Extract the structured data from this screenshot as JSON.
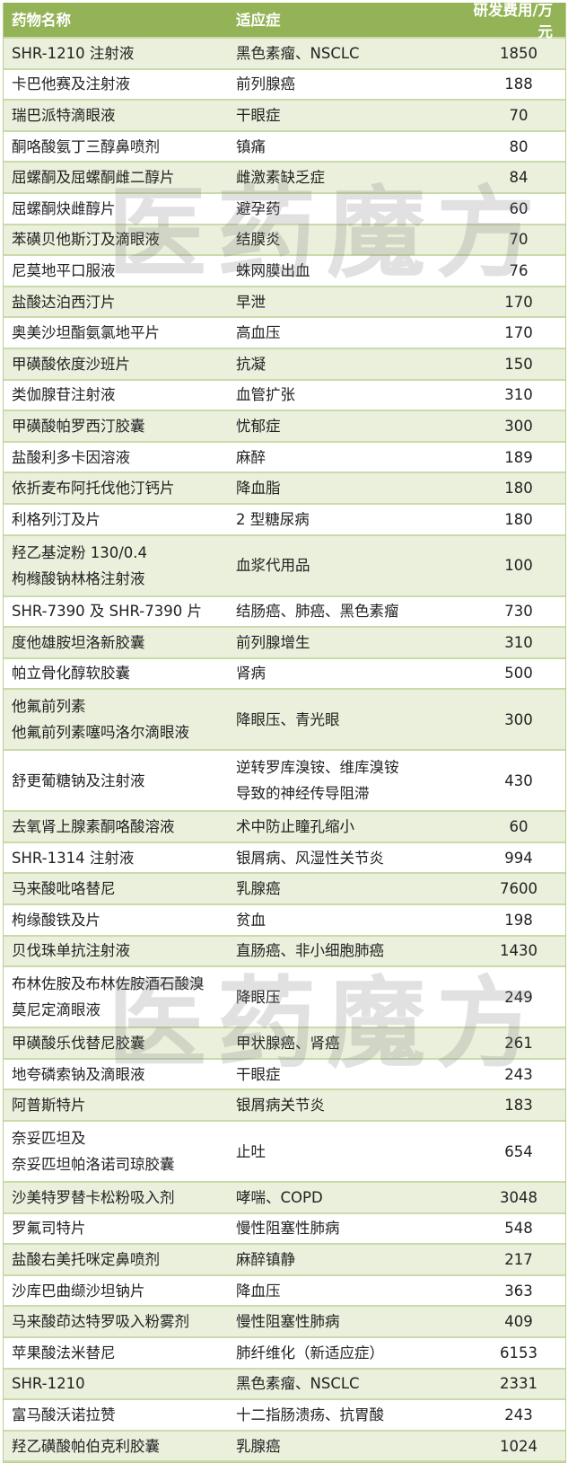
{
  "header": {
    "name": "药物名称",
    "indication": "适应症",
    "cost": "研发费用/万元"
  },
  "watermark": "医药魔方",
  "colors": {
    "header_bg": "#93b356",
    "row_alt_bg": "#eaf0dc",
    "row_bg": "#ffffff"
  },
  "rows": [
    {
      "name": [
        "SHR-1210 注射液"
      ],
      "indication": [
        "黑色素瘤、NSCLC"
      ],
      "cost": "1850"
    },
    {
      "name": [
        "卡巴他赛及注射液"
      ],
      "indication": [
        "前列腺癌"
      ],
      "cost": "188"
    },
    {
      "name": [
        "瑞巴派特滴眼液"
      ],
      "indication": [
        "干眼症"
      ],
      "cost": "70"
    },
    {
      "name": [
        "酮咯酸氨丁三醇鼻喷剂"
      ],
      "indication": [
        "镇痛"
      ],
      "cost": "80"
    },
    {
      "name": [
        "屈螺酮及屈螺酮雌二醇片"
      ],
      "indication": [
        "雌激素缺乏症"
      ],
      "cost": "84"
    },
    {
      "name": [
        "屈螺酮炔雌醇片"
      ],
      "indication": [
        "避孕药"
      ],
      "cost": "60"
    },
    {
      "name": [
        "苯磺贝他斯汀及滴眼液"
      ],
      "indication": [
        "结膜炎"
      ],
      "cost": "70"
    },
    {
      "name": [
        "尼莫地平口服液"
      ],
      "indication": [
        "蛛网膜出血"
      ],
      "cost": "76"
    },
    {
      "name": [
        "盐酸达泊西汀片"
      ],
      "indication": [
        "早泄"
      ],
      "cost": "170"
    },
    {
      "name": [
        "奥美沙坦酯氨氯地平片"
      ],
      "indication": [
        "高血压"
      ],
      "cost": "170"
    },
    {
      "name": [
        "甲磺酸依度沙班片"
      ],
      "indication": [
        "抗凝"
      ],
      "cost": "150"
    },
    {
      "name": [
        "类伽腺苷注射液"
      ],
      "indication": [
        "血管扩张"
      ],
      "cost": "310"
    },
    {
      "name": [
        "甲磺酸帕罗西汀胶囊"
      ],
      "indication": [
        "忧郁症"
      ],
      "cost": "300"
    },
    {
      "name": [
        "盐酸利多卡因溶液"
      ],
      "indication": [
        "麻醉"
      ],
      "cost": "189"
    },
    {
      "name": [
        "依折麦布阿托伐他汀钙片"
      ],
      "indication": [
        "降血脂"
      ],
      "cost": "180"
    },
    {
      "name": [
        "利格列汀及片"
      ],
      "indication": [
        "2 型糖尿病"
      ],
      "cost": "180"
    },
    {
      "name": [
        "羟乙基淀粉 130/0.4",
        "枸橼酸钠林格注射液"
      ],
      "indication": [
        "血浆代用品"
      ],
      "cost": "100"
    },
    {
      "name": [
        "SHR-7390 及 SHR-7390 片"
      ],
      "indication": [
        "结肠癌、肺癌、黑色素瘤"
      ],
      "cost": "730"
    },
    {
      "name": [
        "度他雄胺坦洛新胶囊"
      ],
      "indication": [
        "前列腺增生"
      ],
      "cost": "310"
    },
    {
      "name": [
        "帕立骨化醇软胶囊"
      ],
      "indication": [
        "肾病"
      ],
      "cost": "500"
    },
    {
      "name": [
        "他氟前列素",
        "他氟前列素噻吗洛尔滴眼液"
      ],
      "indication": [
        "降眼压、青光眼"
      ],
      "cost": "300"
    },
    {
      "name": [
        "舒更葡糖钠及注射液"
      ],
      "indication": [
        "逆转罗库溴铵、维库溴铵",
        "导致的神经传导阻滞"
      ],
      "cost": "430"
    },
    {
      "name": [
        "去氧肾上腺素酮咯酸溶液"
      ],
      "indication": [
        "术中防止瞳孔缩小"
      ],
      "cost": "60"
    },
    {
      "name": [
        "SHR-1314 注射液"
      ],
      "indication": [
        "银屑病、风湿性关节炎"
      ],
      "cost": "994"
    },
    {
      "name": [
        "马来酸吡咯替尼"
      ],
      "indication": [
        "乳腺癌"
      ],
      "cost": "7600"
    },
    {
      "name": [
        "枸缘酸铁及片"
      ],
      "indication": [
        "贫血"
      ],
      "cost": "198"
    },
    {
      "name": [
        "贝伐珠单抗注射液"
      ],
      "indication": [
        "直肠癌、非小细胞肺癌"
      ],
      "cost": "1430"
    },
    {
      "name": [
        "布林佐胺及布林佐胺酒石酸溴",
        "莫尼定滴眼液"
      ],
      "indication": [
        "降眼压"
      ],
      "cost": "249"
    },
    {
      "name": [
        "甲磺酸乐伐替尼胶囊"
      ],
      "indication": [
        "甲状腺癌、肾癌"
      ],
      "cost": "261"
    },
    {
      "name": [
        "地夸磷索钠及滴眼液"
      ],
      "indication": [
        "干眼症"
      ],
      "cost": "243"
    },
    {
      "name": [
        "阿普斯特片"
      ],
      "indication": [
        "银屑病关节炎"
      ],
      "cost": "183"
    },
    {
      "name": [
        "奈妥匹坦及",
        "奈妥匹坦帕洛诺司琼胶囊"
      ],
      "indication": [
        "止吐"
      ],
      "cost": "654"
    },
    {
      "name": [
        "沙美特罗替卡松粉吸入剂"
      ],
      "indication": [
        "哮喘、COPD"
      ],
      "cost": "3048"
    },
    {
      "name": [
        "罗氟司特片"
      ],
      "indication": [
        "慢性阻塞性肺病"
      ],
      "cost": "548"
    },
    {
      "name": [
        "盐酸右美托咪定鼻喷剂"
      ],
      "indication": [
        "麻醉镇静"
      ],
      "cost": "217"
    },
    {
      "name": [
        "沙库巴曲缬沙坦钠片"
      ],
      "indication": [
        "降血压"
      ],
      "cost": "363"
    },
    {
      "name": [
        "马来酸茚达特罗吸入粉雾剂"
      ],
      "indication": [
        "慢性阻塞性肺病"
      ],
      "cost": "409"
    },
    {
      "name": [
        "苹果酸法米替尼"
      ],
      "indication": [
        "肺纤维化（新适应症）"
      ],
      "cost": "6153"
    },
    {
      "name": [
        "SHR-1210"
      ],
      "indication": [
        "黑色素瘤、NSCLC"
      ],
      "cost": "2331"
    },
    {
      "name": [
        "富马酸沃诺拉赞"
      ],
      "indication": [
        "十二指肠溃疡、抗胃酸"
      ],
      "cost": "243"
    },
    {
      "name": [
        "羟乙磺酸帕伯克利胶囊"
      ],
      "indication": [
        "乳腺癌"
      ],
      "cost": "1024"
    }
  ]
}
